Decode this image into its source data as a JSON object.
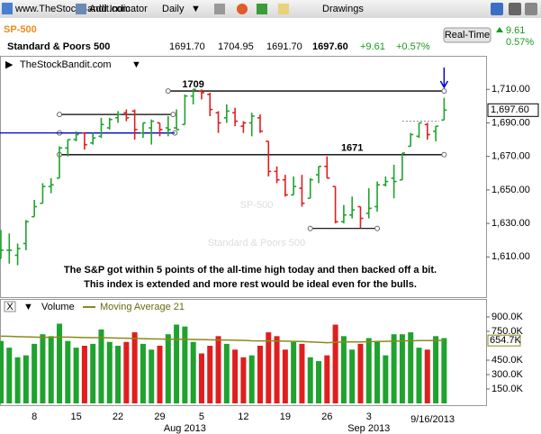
{
  "toolbar": {
    "site": "www.TheStockBandit.com",
    "add_indicator": "Add Indicator",
    "period": "Daily",
    "drawings": "Drawings"
  },
  "quote": {
    "symbol": "SP-500",
    "name": "Standard & Poors 500",
    "open": "1691.70",
    "high": "1704.95",
    "low": "1691.70",
    "last": "1697.60",
    "change": "+9.61",
    "change_pct": "+0.57%",
    "button": "Real-Time",
    "right_change": "9.61",
    "right_pct": "0.57%"
  },
  "chart_data": {
    "type": "ohlc",
    "source": "TheStockBandit.com",
    "watermark": {
      "symbol": "SP-500",
      "name": "Standard & Poors 500"
    },
    "annotation": [
      "The S&P got within 5 points of the all-time high today and then backed off a bit.",
      "This index is extended and more rest would be ideal even for the bulls."
    ],
    "categories": [
      null,
      null,
      null,
      null,
      "8",
      null,
      null,
      null,
      null,
      "15",
      null,
      null,
      null,
      null,
      "22",
      null,
      null,
      null,
      null,
      "29",
      null,
      null,
      null,
      null,
      "5",
      null,
      null,
      null,
      null,
      "12",
      null,
      null,
      null,
      null,
      "19",
      null,
      null,
      null,
      null,
      "26",
      null,
      null,
      null,
      null,
      "3",
      null,
      null,
      null,
      null,
      null,
      null,
      null,
      null,
      null
    ],
    "month_labels": [
      null,
      null,
      null,
      null,
      null,
      null,
      null,
      null,
      null,
      null,
      null,
      null,
      null,
      null,
      null,
      null,
      null,
      null,
      null,
      null,
      null,
      null,
      "Aug 2013",
      null,
      null,
      null,
      null,
      null,
      null,
      null,
      null,
      null,
      null,
      null,
      null,
      null,
      null,
      null,
      null,
      null,
      null,
      null,
      null,
      null,
      "Sep 2013",
      null,
      null,
      null,
      null,
      null,
      null,
      null,
      null,
      null
    ],
    "last_date": "9/16/2013",
    "open": [
      1609,
      1614,
      1611,
      1618,
      1634,
      1642,
      1652,
      1657,
      1675,
      1680,
      1684,
      1678,
      1682,
      1687,
      1693,
      1696,
      1697,
      1684,
      1687,
      1690,
      1687,
      1687,
      1689,
      1706,
      1709,
      1707,
      1696,
      1693,
      1696,
      1688,
      1690,
      1693,
      1679,
      1661,
      1656,
      1647,
      1651,
      1645,
      1659,
      1664,
      1652,
      1631,
      1635,
      1640,
      1636,
      1640,
      1653,
      1657,
      1656,
      1676,
      1682,
      1689,
      1685,
      1691.7
    ],
    "high": [
      1626,
      1624,
      1618,
      1632,
      1644,
      1654,
      1657,
      1676,
      1680,
      1685,
      1684,
      1684,
      1693,
      1693,
      1697,
      1698,
      1698,
      1690,
      1692,
      1690,
      1694,
      1698,
      1707,
      1710,
      1710,
      1708,
      1697,
      1701,
      1699,
      1691,
      1696,
      1695,
      1679,
      1664,
      1659,
      1658,
      1659,
      1657,
      1664,
      1670,
      1652,
      1641,
      1646,
      1640,
      1651,
      1655,
      1658,
      1665,
      1672,
      1684,
      1690,
      1690,
      1688,
      1704.95
    ],
    "low": [
      1609,
      1606,
      1605,
      1614,
      1634,
      1642,
      1648,
      1657,
      1670,
      1679,
      1674,
      1677,
      1681,
      1686,
      1690,
      1691,
      1680,
      1681,
      1677,
      1682,
      1682,
      1686,
      1689,
      1701,
      1704,
      1694,
      1684,
      1690,
      1688,
      1684,
      1682,
      1684,
      1658,
      1654,
      1646,
      1647,
      1640,
      1645,
      1654,
      1657,
      1630,
      1630,
      1633,
      1627,
      1633,
      1637,
      1652,
      1645,
      1656,
      1676,
      1681,
      1680,
      1679,
      1691.7
    ],
    "close": [
      1614,
      1614,
      1615,
      1631,
      1640,
      1652,
      1653,
      1675,
      1680,
      1683,
      1677,
      1681,
      1689,
      1692,
      1695,
      1693,
      1686,
      1690,
      1691,
      1686,
      1686,
      1686,
      1706,
      1710,
      1708,
      1698,
      1690,
      1697,
      1691,
      1690,
      1694,
      1685,
      1661,
      1656,
      1647,
      1652,
      1642,
      1656,
      1664,
      1657,
      1631,
      1635,
      1638,
      1633,
      1639,
      1653,
      1655,
      1655,
      1672,
      1683,
      1690,
      1683,
      1688,
      1697.6
    ],
    "volume": [
      650000,
      580000,
      480000,
      500000,
      620000,
      720000,
      700000,
      830000,
      650000,
      580000,
      600000,
      620000,
      770000,
      640000,
      600000,
      640000,
      740000,
      620000,
      560000,
      600000,
      720000,
      820000,
      800000,
      640000,
      520000,
      600000,
      700000,
      620000,
      560000,
      480000,
      500000,
      600000,
      740000,
      700000,
      560000,
      640000,
      620000,
      480000,
      440000,
      500000,
      820000,
      700000,
      560000,
      620000,
      680000,
      640000,
      500000,
      720000,
      720000,
      740000,
      580000,
      560000,
      700000,
      680000
    ],
    "ma": [
      700000,
      698000,
      695000,
      692000,
      690000,
      688000,
      688000,
      690000,
      690000,
      688000,
      686000,
      684000,
      684000,
      682000,
      680000,
      678000,
      676000,
      674000,
      672000,
      670000,
      668000,
      668000,
      668000,
      666000,
      664000,
      662000,
      660000,
      660000,
      658000,
      656000,
      652000,
      650000,
      650000,
      650000,
      648000,
      646000,
      644000,
      640000,
      636000,
      632000,
      636000,
      640000,
      640000,
      640000,
      642000,
      644000,
      646000,
      648000,
      650000,
      652000,
      654000,
      654000,
      654500,
      654700
    ],
    "ma_color": "#8a8a1a",
    "up_color": "#1fa22e",
    "down_color": "#e01e1e",
    "ylim": [
      1586,
      1730
    ],
    "yticks": [
      {
        "value": 1610,
        "label": "1,610.00"
      },
      {
        "value": 1630,
        "label": "1,630.00"
      },
      {
        "value": 1650,
        "label": "1,650.00"
      },
      {
        "value": 1670,
        "label": "1,670.00"
      },
      {
        "value": 1690,
        "label": "1,690.00"
      },
      {
        "value": 1710,
        "label": "1,710.00"
      }
    ],
    "last_label": {
      "value": 1697.6,
      "label": "1,697.60"
    },
    "levels": [
      {
        "value": 1709,
        "label": "1709",
        "color": "#000000"
      },
      {
        "value": 1671,
        "label": "1671",
        "color": "#000000"
      }
    ],
    "trendlines": [
      {
        "value": 1695,
        "color": "#000000"
      },
      {
        "value": 1684,
        "color": "#000000"
      },
      {
        "value": 1684,
        "color": "#0000cc"
      },
      {
        "value": 1627,
        "color": "#000000"
      },
      {
        "value": 1691,
        "color": "#999999"
      }
    ],
    "volume_panel": {
      "title": "Volume",
      "ma_label": "Moving Average 21",
      "close": "X",
      "ylim": [
        0,
        937500
      ],
      "yticks": [
        {
          "value": 150000,
          "label": "150.0K"
        },
        {
          "value": 300000,
          "label": "300.0K"
        },
        {
          "value": 450000,
          "label": "450.0K"
        },
        {
          "value": 750000,
          "label": "750.0K"
        },
        {
          "value": 900000,
          "label": "900.0K"
        }
      ],
      "last_label": {
        "value": 654700,
        "label": "654.7K"
      }
    }
  }
}
